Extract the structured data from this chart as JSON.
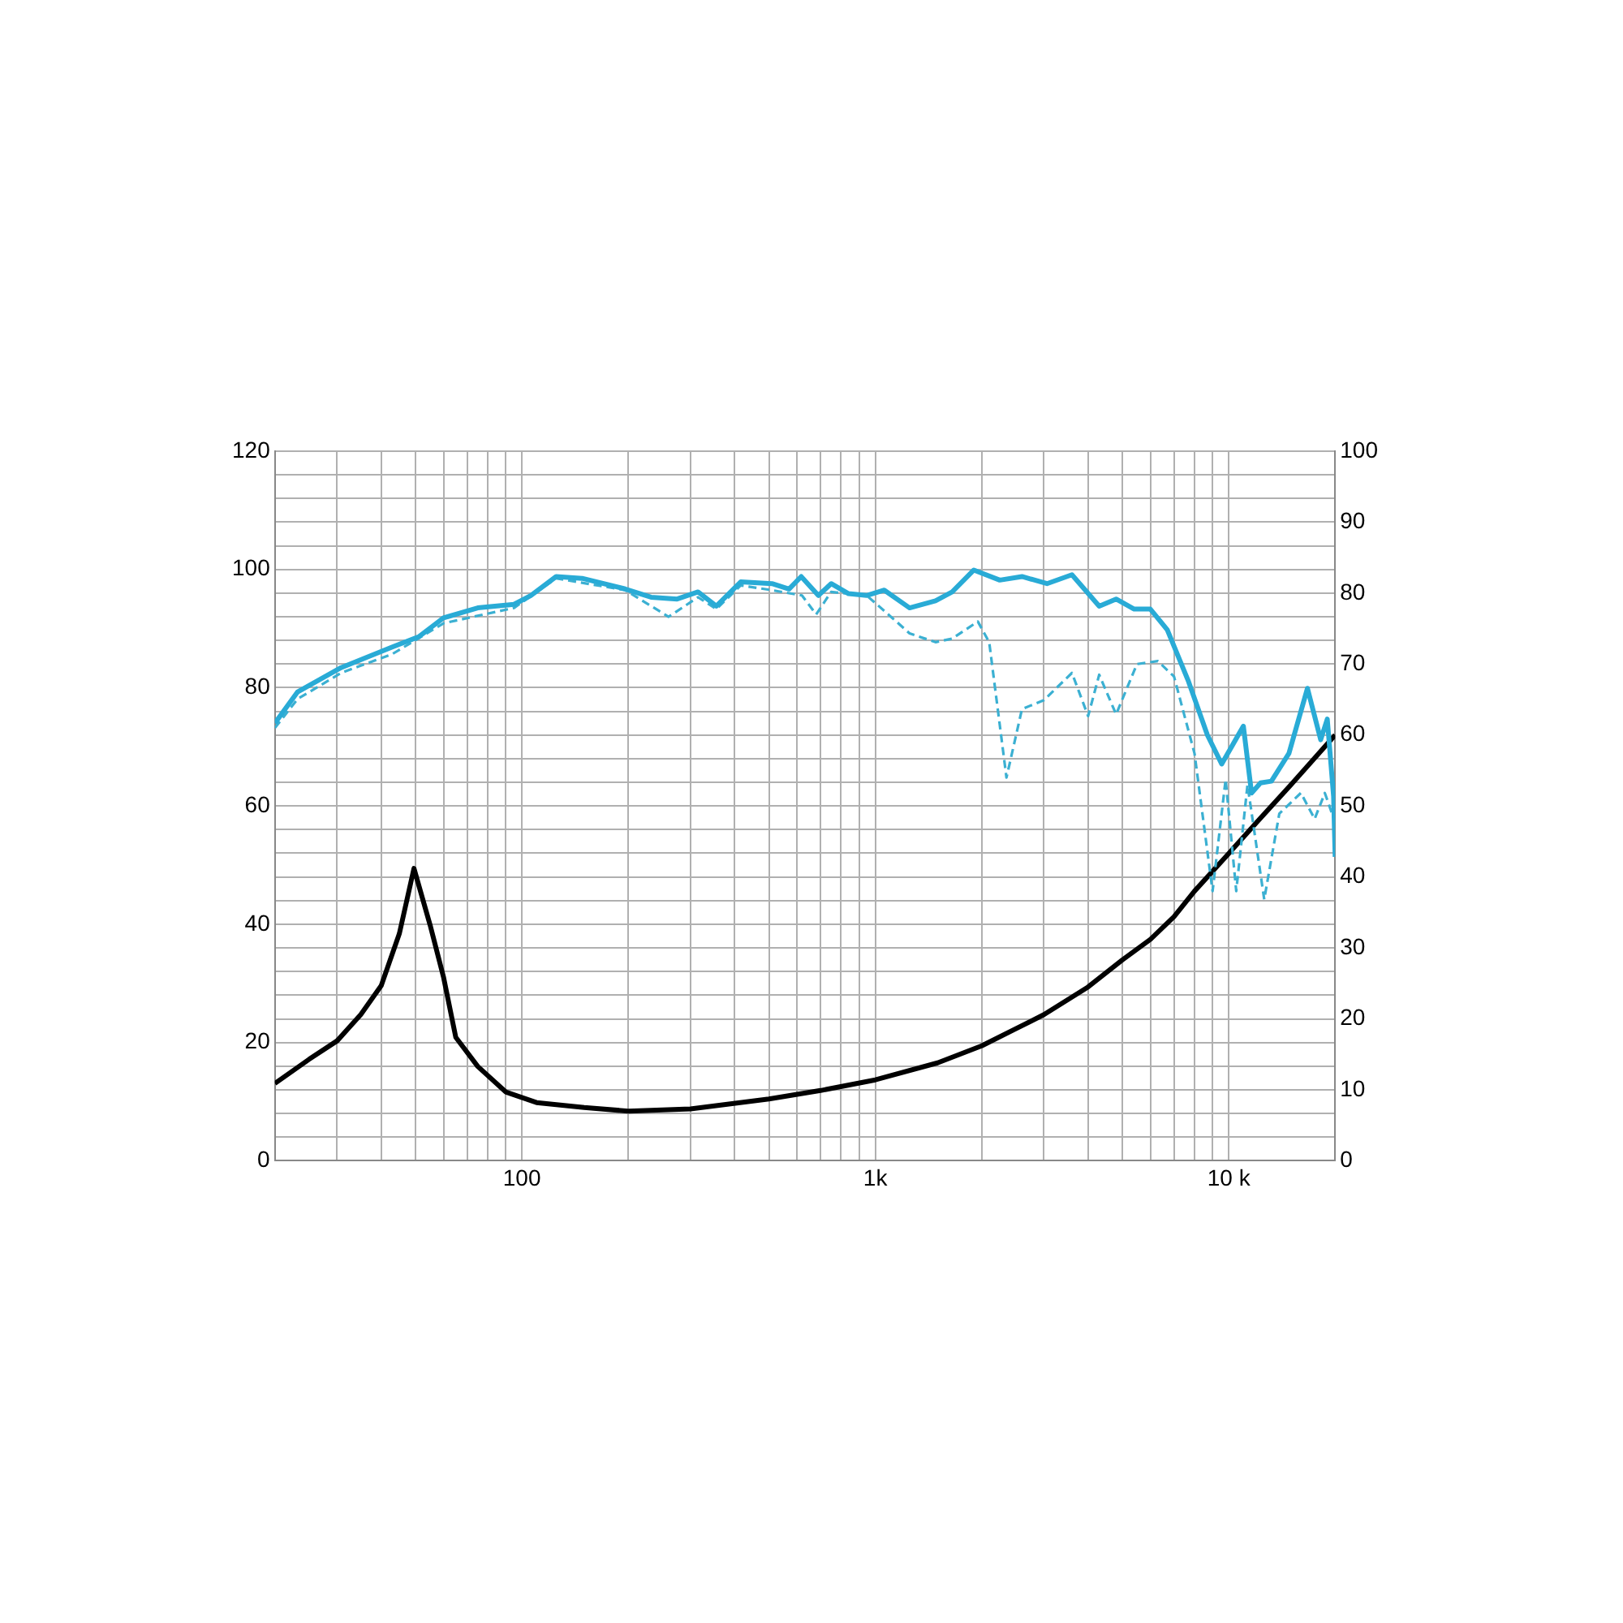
{
  "chart_data": {
    "type": "line",
    "log": "x",
    "grid": true,
    "legend": false,
    "xlim": [
      20,
      20000
    ],
    "xticks": [
      {
        "value": 20,
        "label": null
      },
      {
        "value": 30,
        "label": null
      },
      {
        "value": 40,
        "label": null
      },
      {
        "value": 50,
        "label": null
      },
      {
        "value": 60,
        "label": null
      },
      {
        "value": 70,
        "label": null
      },
      {
        "value": 80,
        "label": null
      },
      {
        "value": 90,
        "label": null
      },
      100,
      {
        "value": 200,
        "label": null
      },
      {
        "value": 300,
        "label": null
      },
      {
        "value": 400,
        "label": null
      },
      {
        "value": 500,
        "label": null
      },
      {
        "value": 600,
        "label": null
      },
      {
        "value": 700,
        "label": null
      },
      {
        "value": 800,
        "label": null
      },
      {
        "value": 900,
        "label": null
      },
      {
        "value": 1000,
        "label": "1k"
      },
      {
        "value": 2000,
        "label": null
      },
      {
        "value": 3000,
        "label": null
      },
      {
        "value": 4000,
        "label": null
      },
      {
        "value": 5000,
        "label": null
      },
      {
        "value": 6000,
        "label": null
      },
      {
        "value": 7000,
        "label": null
      },
      {
        "value": 8000,
        "label": null
      },
      {
        "value": 9000,
        "label": null
      },
      {
        "value": 10000,
        "label": "10 k"
      },
      {
        "value": 20000,
        "label": null
      }
    ],
    "ylim": [
      0,
      120
    ],
    "yticks": [
      0,
      {
        "value": 4,
        "label": null
      },
      {
        "value": 8,
        "label": null
      },
      {
        "value": 12,
        "label": null
      },
      {
        "value": 16,
        "label": null
      },
      20,
      {
        "value": 24,
        "label": null
      },
      {
        "value": 28,
        "label": null
      },
      {
        "value": 32,
        "label": null
      },
      {
        "value": 36,
        "label": null
      },
      40,
      {
        "value": 44,
        "label": null
      },
      {
        "value": 48,
        "label": null
      },
      {
        "value": 52,
        "label": null
      },
      {
        "value": 56,
        "label": null
      },
      60,
      {
        "value": 64,
        "label": null
      },
      {
        "value": 68,
        "label": null
      },
      {
        "value": 72,
        "label": null
      },
      {
        "value": 76,
        "label": null
      },
      80,
      {
        "value": 84,
        "label": null
      },
      {
        "value": 88,
        "label": null
      },
      {
        "value": 92,
        "label": null
      },
      {
        "value": 96,
        "label": null
      },
      100,
      {
        "value": 104,
        "label": null
      },
      {
        "value": 108,
        "label": null
      },
      {
        "value": 112,
        "label": null
      },
      {
        "value": 116,
        "label": null
      },
      120
    ],
    "y2lim": [
      0,
      100
    ],
    "y2ticks": [
      0,
      10,
      20,
      30,
      40,
      50,
      60,
      70,
      80,
      90,
      100
    ],
    "series": [
      {
        "color": "#29abd6",
        "line_style": "solid",
        "x": [
          20,
          23.2,
          30.8,
          43,
          51,
          60,
          75,
          95,
          106,
          125,
          148,
          196,
          232,
          275,
          315,
          355,
          416,
          510,
          570,
          617,
          690,
          750,
          840,
          945,
          1060,
          1250,
          1480,
          1650,
          1900,
          2250,
          2600,
          3060,
          3600,
          4300,
          4800,
          5400,
          6000,
          6700,
          7700,
          8700,
          9550,
          11000,
          11600,
          12300,
          13200,
          14800,
          16700,
          18200,
          19000,
          19800,
          20000
        ],
        "values": [
          74,
          79.3,
          83.4,
          86.9,
          88.6,
          91.8,
          93.5,
          94.1,
          95.6,
          98.8,
          98.5,
          96.7,
          95.3,
          95,
          96.2,
          93.8,
          97.9,
          97.6,
          96.7,
          98.8,
          95.6,
          97.6,
          95.9,
          95.6,
          96.5,
          93.5,
          94.7,
          96.2,
          99.9,
          98.2,
          98.8,
          97.6,
          99.1,
          93.8,
          95,
          93.3,
          93.3,
          89.8,
          81,
          72,
          67.1,
          73.5,
          62.2,
          63.9,
          64.2,
          68.9,
          79.9,
          71.2,
          74.7,
          61.6,
          51.4
        ]
      },
      {
        "color": "#3bb0d2",
        "line_style": "dashed",
        "x": [
          20,
          23.2,
          30.8,
          43,
          60,
          95,
          125,
          196,
          260,
          315,
          355,
          416,
          510,
          620,
          680,
          750,
          945,
          1060,
          1250,
          1480,
          1650,
          1950,
          2100,
          2350,
          2600,
          3000,
          3600,
          4000,
          4300,
          4800,
          5500,
          6300,
          7000,
          8000,
          9000,
          9800,
          10500,
          11300,
          12600,
          13900,
          16000,
          17500,
          18700,
          20000
        ],
        "values": [
          73.2,
          78.1,
          82.5,
          85.7,
          90.9,
          93.5,
          98.5,
          96.5,
          92,
          95.3,
          93.3,
          97.3,
          96.5,
          95.6,
          92.4,
          96.2,
          95.6,
          93,
          89.2,
          87.7,
          88.3,
          91.2,
          87.7,
          64.8,
          76.4,
          77.9,
          82.5,
          75.2,
          82.2,
          75.5,
          84,
          84.5,
          81.9,
          68.9,
          45.6,
          64.5,
          45.6,
          63.6,
          44.2,
          58.7,
          62.2,
          57.8,
          62.2,
          57.2
        ]
      },
      {
        "color": "#000000",
        "line_style": "solid",
        "axis": "y2",
        "x": [
          20,
          25,
          30,
          35,
          40,
          45,
          49.5,
          55,
          60,
          65,
          75,
          90,
          110,
          150,
          200,
          300,
          500,
          700,
          1000,
          1500,
          2000,
          3000,
          4000,
          5000,
          6000,
          7000,
          8000,
          10000,
          12000,
          15000,
          20000
        ],
        "values": [
          10.9,
          14.3,
          16.9,
          20.6,
          24.7,
          32,
          41.2,
          33.2,
          25.9,
          17.4,
          13.3,
          9.7,
          8.2,
          7.5,
          7,
          7.3,
          8.7,
          9.9,
          11.4,
          13.8,
          16.2,
          20.6,
          24.5,
          28.3,
          31.2,
          34.4,
          38,
          43.3,
          47.7,
          53,
          60
        ]
      }
    ]
  }
}
